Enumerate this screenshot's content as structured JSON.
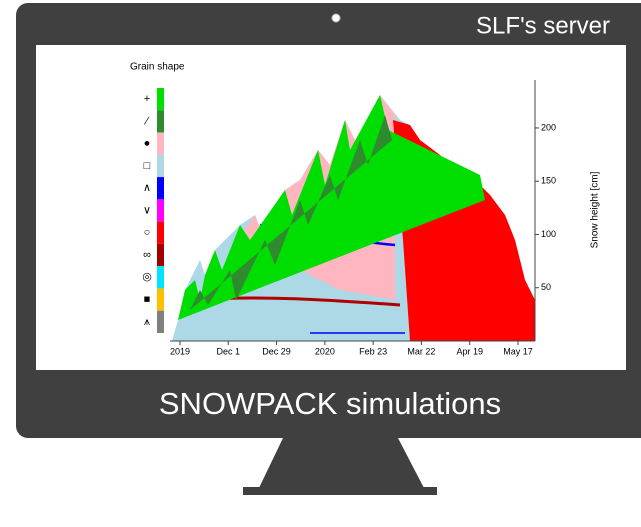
{
  "screen": {
    "label": "SLF's server"
  },
  "caption": "SNOWPACK simulations",
  "chart_data": {
    "type": "snow-profile",
    "legend_title": "Grain shape",
    "legend": [
      {
        "symbol": "+",
        "color": "#00e000"
      },
      {
        "symbol": "∕",
        "color": "#2e8b2e"
      },
      {
        "symbol": "●",
        "color": "#ffb6c1"
      },
      {
        "symbol": "□",
        "color": "#add8e6"
      },
      {
        "symbol": "∧",
        "color": "#0000ff"
      },
      {
        "symbol": "∨",
        "color": "#ff00ff"
      },
      {
        "symbol": "○",
        "color": "#ff0000"
      },
      {
        "symbol": "∞",
        "color": "#a00000"
      },
      {
        "symbol": "◎",
        "color": "#00e5ff"
      },
      {
        "symbol": "■",
        "color": "#ffc000"
      },
      {
        "symbol": "⩚",
        "color": "#808080"
      }
    ],
    "categories": [
      "2019",
      "Dec 1",
      "Dec 29",
      "2020",
      "Feb 23",
      "Mar 22",
      "Apr 19",
      "May 17"
    ],
    "ylabel": "Snow height [cm]",
    "ylim": [
      0,
      245
    ],
    "yticks": [
      50,
      100,
      150,
      200
    ]
  }
}
